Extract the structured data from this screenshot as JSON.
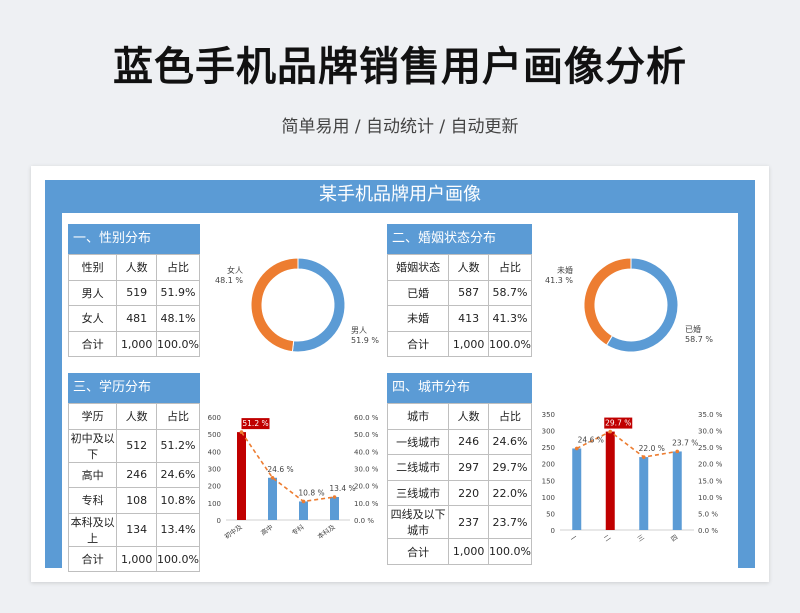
{
  "page": {
    "title": "蓝色手机品牌销售用户画像分析",
    "subtitle": "简单易用 / 自动统计 / 自动更新"
  },
  "dashboard": {
    "title": "某手机品牌用户画像"
  },
  "colors": {
    "blue": "#5b9bd5",
    "orange": "#ed7d31",
    "red": "#c00000"
  },
  "sections": {
    "gender": {
      "heading": "一、性别分布",
      "headers": [
        "性别",
        "人数",
        "占比"
      ],
      "rows": [
        [
          "男人",
          "519",
          "51.9%"
        ],
        [
          "女人",
          "481",
          "48.1%"
        ],
        [
          "合计",
          "1,000",
          "100.0%"
        ]
      ]
    },
    "marriage": {
      "heading": "二、婚姻状态分布",
      "headers": [
        "婚姻状态",
        "人数",
        "占比"
      ],
      "rows": [
        [
          "已婚",
          "587",
          "58.7%"
        ],
        [
          "未婚",
          "413",
          "41.3%"
        ],
        [
          "合计",
          "1,000",
          "100.0%"
        ]
      ]
    },
    "education": {
      "heading": "三、学历分布",
      "headers": [
        "学历",
        "人数",
        "占比"
      ],
      "rows": [
        [
          "初中及以下",
          "512",
          "51.2%"
        ],
        [
          "高中",
          "246",
          "24.6%"
        ],
        [
          "专科",
          "108",
          "10.8%"
        ],
        [
          "本科及以上",
          "134",
          "13.4%"
        ],
        [
          "合计",
          "1,000",
          "100.0%"
        ]
      ]
    },
    "city": {
      "heading": "四、城市分布",
      "headers": [
        "城市",
        "人数",
        "占比"
      ],
      "rows": [
        [
          "一线城市",
          "246",
          "24.6%"
        ],
        [
          "二线城市",
          "297",
          "29.7%"
        ],
        [
          "三线城市",
          "220",
          "22.0%"
        ],
        [
          "四线及以下城市",
          "237",
          "23.7%"
        ],
        [
          "合计",
          "1,000",
          "100.0%"
        ]
      ]
    }
  },
  "chart_data": [
    {
      "type": "pie",
      "donut": true,
      "slices": [
        {
          "label": "男人",
          "pct_label": "51.9 %",
          "value": 51.9,
          "color": "#5b9bd5"
        },
        {
          "label": "女人",
          "pct_label": "48.1 %",
          "value": 48.1,
          "color": "#ed7d31"
        }
      ]
    },
    {
      "type": "pie",
      "donut": true,
      "slices": [
        {
          "label": "已婚",
          "pct_label": "58.7 %",
          "value": 58.7,
          "color": "#5b9bd5"
        },
        {
          "label": "未婚",
          "pct_label": "41.3 %",
          "value": 41.3,
          "color": "#ed7d31"
        }
      ]
    },
    {
      "type": "bar",
      "categories": [
        "初中及",
        "高中",
        "专科",
        "本科及"
      ],
      "values": [
        512,
        246,
        108,
        134
      ],
      "line_values": [
        51.2,
        24.6,
        10.8,
        13.4
      ],
      "line_labels": [
        "51.2 %",
        "24.6 %",
        "10.8 %",
        "13.4 %"
      ],
      "highlight_index": 0,
      "ylim": [
        0,
        600
      ],
      "yticks": [
        "0",
        "100",
        "200",
        "300",
        "400",
        "500",
        "600"
      ],
      "y2lim": [
        0,
        60
      ],
      "y2ticks": [
        "0.0 %",
        "10.0 %",
        "20.0 %",
        "30.0 %",
        "40.0 %",
        "50.0 %",
        "60.0 %"
      ]
    },
    {
      "type": "bar",
      "categories": [
        "一",
        "二",
        "三",
        "四"
      ],
      "values": [
        246,
        297,
        220,
        237
      ],
      "line_values": [
        24.6,
        29.7,
        22.0,
        23.7
      ],
      "line_labels": [
        "24.6 %",
        "29.7 %",
        "22.0 %",
        "23.7 %"
      ],
      "highlight_index": 1,
      "ylim": [
        0,
        350
      ],
      "yticks": [
        "0",
        "50",
        "100",
        "150",
        "200",
        "250",
        "300",
        "350"
      ],
      "y2lim": [
        0,
        35
      ],
      "y2ticks": [
        "0.0 %",
        "5.0 %",
        "10.0 %",
        "15.0 %",
        "20.0 %",
        "25.0 %",
        "30.0 %",
        "35.0 %"
      ]
    }
  ]
}
